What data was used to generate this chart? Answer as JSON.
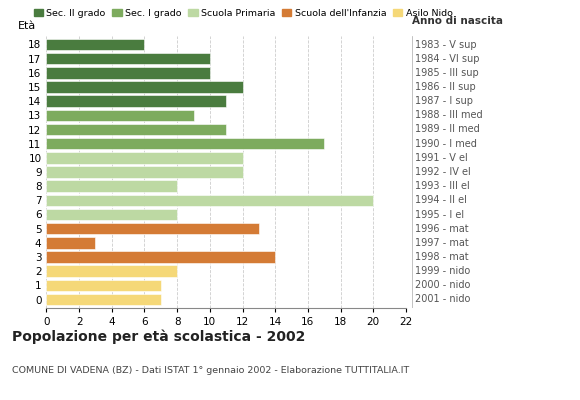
{
  "ages": [
    18,
    17,
    16,
    15,
    14,
    13,
    12,
    11,
    10,
    9,
    8,
    7,
    6,
    5,
    4,
    3,
    2,
    1,
    0
  ],
  "categories": {
    "Sec. II grado": {
      "ages": [
        18,
        17,
        16,
        15,
        14
      ],
      "color": "#4a7c3f"
    },
    "Sec. I grado": {
      "ages": [
        13,
        12,
        11
      ],
      "color": "#7dab5e"
    },
    "Scuola Primaria": {
      "ages": [
        10,
        9,
        8,
        7,
        6
      ],
      "color": "#bdd9a3"
    },
    "Scuola dell'Infanzia": {
      "ages": [
        5,
        4,
        3
      ],
      "color": "#d47b35"
    },
    "Asilo Nido": {
      "ages": [
        2,
        1,
        0
      ],
      "color": "#f5d878"
    }
  },
  "right_labels": {
    "18": "1983 - V sup",
    "17": "1984 - VI sup",
    "16": "1985 - III sup",
    "15": "1986 - II sup",
    "14": "1987 - I sup",
    "13": "1988 - III med",
    "12": "1989 - II med",
    "11": "1990 - I med",
    "10": "1991 - V el",
    "9": "1992 - IV el",
    "8": "1993 - III el",
    "7": "1994 - II el",
    "6": "1995 - I el",
    "5": "1996 - mat",
    "4": "1997 - mat",
    "3": "1998 - mat",
    "2": "1999 - nido",
    "1": "2000 - nido",
    "0": "2001 - nido"
  },
  "age_values": {
    "18": 6,
    "17": 10,
    "16": 10,
    "15": 12,
    "14": 11,
    "13": 9,
    "12": 11,
    "11": 17,
    "10": 12,
    "9": 12,
    "8": 8,
    "7": 20,
    "6": 8,
    "5": 13,
    "4": 3,
    "3": 14,
    "2": 8,
    "1": 7,
    "0": 7
  },
  "legend_order": [
    "Sec. II grado",
    "Sec. I grado",
    "Scuola Primaria",
    "Scuola dell'Infanzia",
    "Asilo Nido"
  ],
  "title": "Popolazione per età scolastica - 2002",
  "subtitle": "COMUNE DI VADENA (BZ) - Dati ISTAT 1° gennaio 2002 - Elaborazione TUTTITALIA.IT",
  "xlabel_eta": "Età",
  "xlabel_anno": "Anno di nascita",
  "xlim": [
    0,
    22
  ],
  "xticks": [
    0,
    2,
    4,
    6,
    8,
    10,
    12,
    14,
    16,
    18,
    20,
    22
  ],
  "background_color": "#ffffff",
  "grid_color": "#cccccc"
}
